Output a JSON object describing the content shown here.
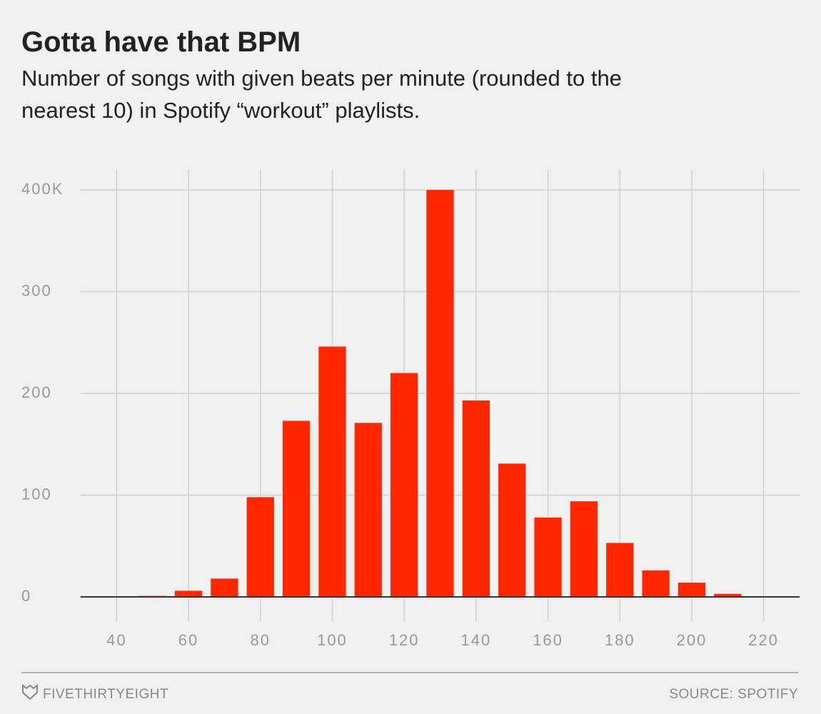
{
  "chart_data": {
    "type": "bar",
    "title": "Gotta have that BPM",
    "subtitle": [
      "Number of songs with given beats per minute (rounded to the",
      "nearest 10) in Spotify “workout” playlists."
    ],
    "x": [
      50,
      60,
      70,
      80,
      90,
      100,
      110,
      120,
      130,
      140,
      150,
      160,
      170,
      180,
      190,
      200,
      210
    ],
    "values": [
      1,
      6,
      18,
      98,
      173,
      246,
      171,
      220,
      400,
      193,
      131,
      78,
      94,
      53,
      26,
      14,
      3
    ],
    "color": "#ff2700",
    "xlim": [
      30,
      230
    ],
    "xticks": [
      40,
      60,
      80,
      100,
      120,
      140,
      160,
      180,
      200,
      220
    ],
    "ylim": [
      0,
      420
    ],
    "yticks": [
      0,
      100,
      200,
      300,
      {
        "value": 400,
        "label": "400K"
      }
    ],
    "grid": true,
    "brand": "FIVETHIRTYEIGHT",
    "source": "SOURCE: SPOTIFY"
  }
}
